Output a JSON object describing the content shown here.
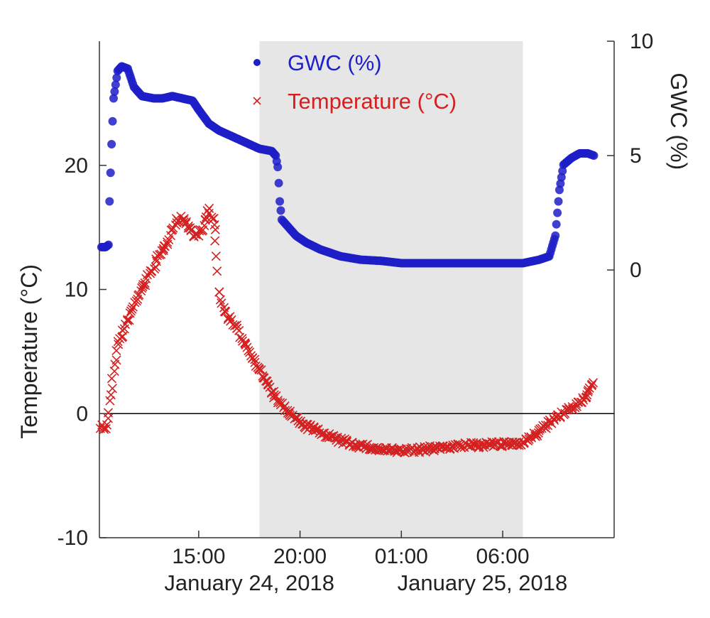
{
  "chart_data": {
    "type": "scatter",
    "title": "",
    "legend": {
      "placement": "top-center",
      "entries": [
        {
          "label": "GWC (%)",
          "marker": "circle",
          "color": "#1f1fc8"
        },
        {
          "label": "Temperature (°C)",
          "marker": "x",
          "color": "#d42020"
        }
      ]
    },
    "x_axis": {
      "unit": "hours since 00:00 January 24, 2018",
      "range": [
        10.1,
        35.5
      ],
      "ticks": [
        {
          "value": 15.0,
          "label": "15:00"
        },
        {
          "value": 20.0,
          "label": "20:00"
        },
        {
          "value": 25.0,
          "label": "01:00"
        },
        {
          "value": 30.0,
          "label": "06:00"
        }
      ],
      "date_labels": [
        {
          "value": 17.5,
          "label": "January 24, 2018"
        },
        {
          "value": 29.0,
          "label": "January 25, 2018"
        }
      ]
    },
    "shaded_region": {
      "x_start": 18.0,
      "x_end": 31.0,
      "color": "#e6e6e6"
    },
    "left_axis": {
      "label": "Temperature (°C)",
      "range": [
        -10,
        30
      ],
      "ticks": [
        -10,
        0,
        10,
        20
      ],
      "zero_line": true
    },
    "right_axis": {
      "label": "GWC (%)",
      "range": [
        -11.7,
        10
      ],
      "ticks": [
        0,
        5,
        10
      ]
    },
    "series": [
      {
        "name": "GWC (%)",
        "axis": "right",
        "color": "#1f1fc8",
        "marker": "circle",
        "points": [
          [
            10.2,
            1.0
          ],
          [
            10.4,
            1.0
          ],
          [
            10.55,
            1.1
          ],
          [
            10.6,
            3.0
          ],
          [
            10.7,
            5.5
          ],
          [
            10.8,
            7.5
          ],
          [
            11.0,
            8.7
          ],
          [
            11.2,
            8.9
          ],
          [
            11.5,
            8.8
          ],
          [
            11.8,
            8.0
          ],
          [
            12.2,
            7.6
          ],
          [
            12.8,
            7.5
          ],
          [
            13.2,
            7.5
          ],
          [
            13.7,
            7.6
          ],
          [
            14.2,
            7.5
          ],
          [
            14.7,
            7.4
          ],
          [
            15.0,
            7.0
          ],
          [
            15.5,
            6.4
          ],
          [
            16.0,
            6.1
          ],
          [
            16.5,
            5.9
          ],
          [
            17.0,
            5.7
          ],
          [
            17.5,
            5.5
          ],
          [
            18.0,
            5.3
          ],
          [
            18.6,
            5.2
          ],
          [
            18.8,
            5.0
          ],
          [
            18.9,
            4.5
          ],
          [
            18.95,
            3.8
          ],
          [
            19.0,
            3.0
          ],
          [
            19.1,
            2.2
          ],
          [
            19.4,
            1.9
          ],
          [
            19.8,
            1.5
          ],
          [
            20.3,
            1.2
          ],
          [
            21.0,
            0.9
          ],
          [
            22.0,
            0.6
          ],
          [
            23.0,
            0.45
          ],
          [
            24.0,
            0.4
          ],
          [
            25.0,
            0.3
          ],
          [
            26.0,
            0.3
          ],
          [
            27.0,
            0.3
          ],
          [
            28.0,
            0.3
          ],
          [
            29.0,
            0.3
          ],
          [
            30.0,
            0.3
          ],
          [
            31.0,
            0.3
          ],
          [
            31.8,
            0.45
          ],
          [
            32.3,
            0.6
          ],
          [
            32.6,
            1.5
          ],
          [
            32.8,
            3.5
          ],
          [
            33.0,
            4.6
          ],
          [
            33.4,
            4.9
          ],
          [
            33.8,
            5.1
          ],
          [
            34.2,
            5.1
          ],
          [
            34.5,
            5.0
          ]
        ]
      },
      {
        "name": "Temperature (°C)",
        "axis": "left",
        "color": "#d42020",
        "marker": "x",
        "points": [
          [
            10.2,
            -1.0
          ],
          [
            10.4,
            -1.2
          ],
          [
            10.5,
            -0.5
          ],
          [
            10.8,
            3.5
          ],
          [
            11.0,
            5.5
          ],
          [
            11.5,
            7.5
          ],
          [
            12.0,
            9.5
          ],
          [
            12.5,
            11.0
          ],
          [
            13.0,
            12.5
          ],
          [
            13.5,
            14.0
          ],
          [
            13.9,
            15.5
          ],
          [
            14.2,
            15.8
          ],
          [
            14.5,
            15.0
          ],
          [
            14.8,
            14.3
          ],
          [
            15.2,
            14.8
          ],
          [
            15.5,
            16.5
          ],
          [
            15.8,
            15.0
          ],
          [
            16.0,
            10.0
          ],
          [
            16.2,
            8.5
          ],
          [
            16.6,
            7.5
          ],
          [
            17.0,
            6.5
          ],
          [
            17.5,
            5.0
          ],
          [
            18.0,
            3.5
          ],
          [
            18.5,
            2.0
          ],
          [
            19.0,
            0.8
          ],
          [
            19.5,
            0.0
          ],
          [
            20.0,
            -0.8
          ],
          [
            21.0,
            -1.5
          ],
          [
            22.0,
            -2.2
          ],
          [
            23.0,
            -2.6
          ],
          [
            24.0,
            -2.9
          ],
          [
            25.0,
            -3.0
          ],
          [
            26.0,
            -2.9
          ],
          [
            27.0,
            -2.7
          ],
          [
            28.0,
            -2.6
          ],
          [
            29.0,
            -2.5
          ],
          [
            30.0,
            -2.5
          ],
          [
            31.0,
            -2.3
          ],
          [
            31.5,
            -1.8
          ],
          [
            32.0,
            -1.2
          ],
          [
            32.5,
            -0.5
          ],
          [
            33.0,
            0.0
          ],
          [
            33.5,
            0.5
          ],
          [
            34.0,
            1.2
          ],
          [
            34.5,
            2.5
          ]
        ]
      }
    ]
  }
}
